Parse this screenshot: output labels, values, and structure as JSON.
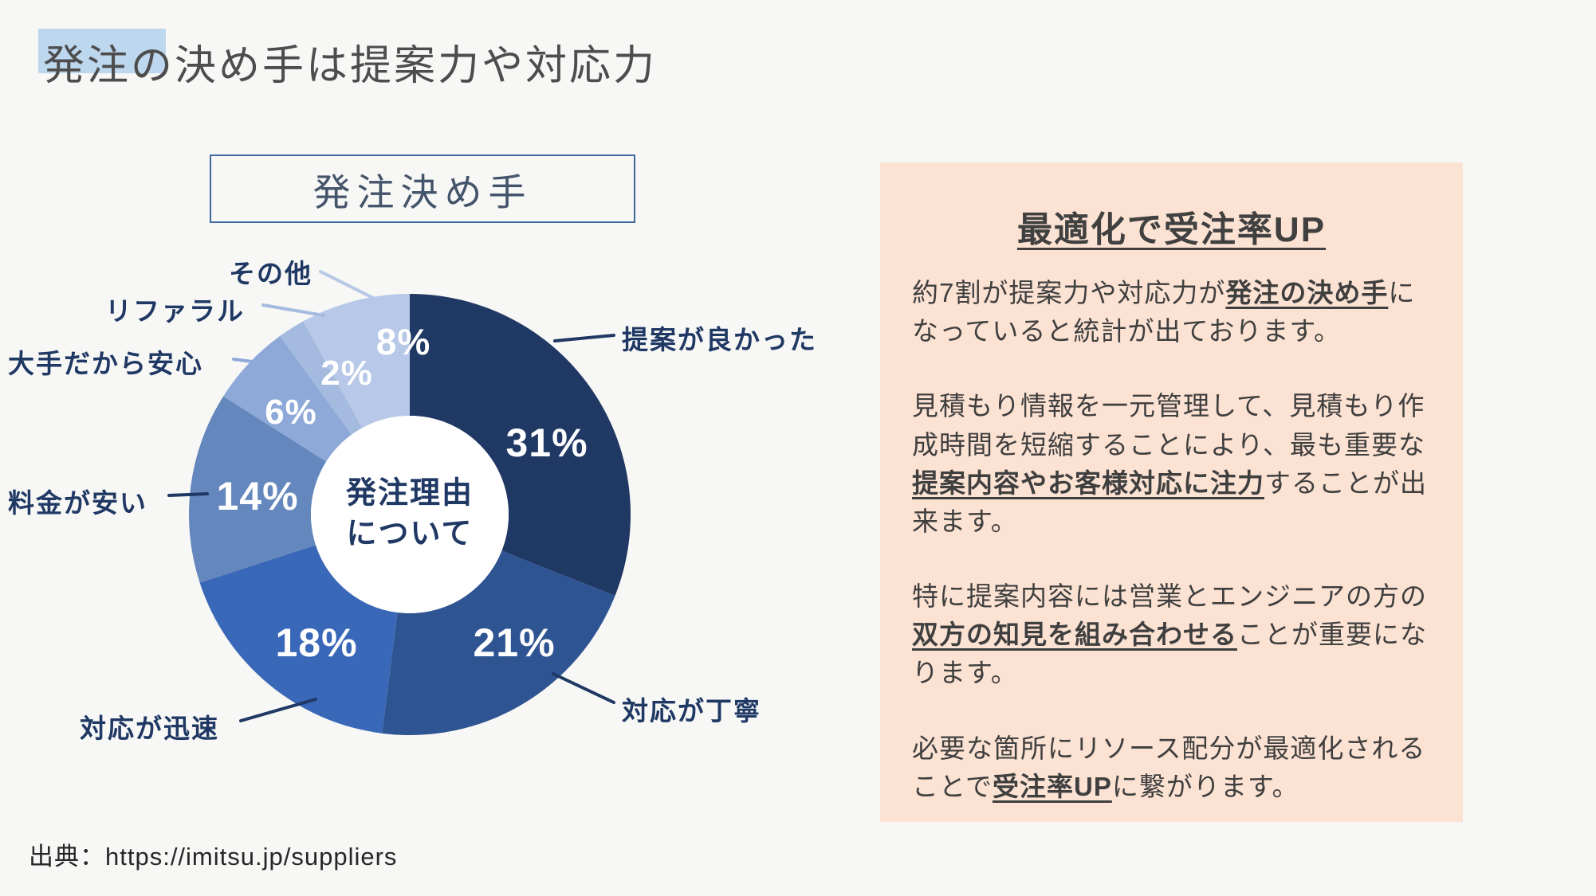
{
  "page": {
    "title": "発注の決め手は提案力や対応力",
    "source": "出典：https://imitsu.jp/suppliers"
  },
  "colors": {
    "slide_background": "#f7f7f5",
    "title_highlight": "#bdd7ee",
    "panel_background": "#fbe2d3",
    "label_navy": "#1f3864",
    "chart_box_border": "#3f689c",
    "body_text": "#3f3f3f"
  },
  "chart_data": {
    "type": "pie",
    "variant": "donut",
    "title": "発注決め手",
    "center_label": "発注理由について",
    "center_label_lines": [
      "発注理由",
      "について"
    ],
    "unit": "%",
    "start_angle_deg": 0,
    "direction": "clockwise",
    "slices": [
      {
        "label": "提案が良かった",
        "value": 31,
        "color": "#203864"
      },
      {
        "label": "対応が丁寧",
        "value": 21,
        "color": "#2e5492"
      },
      {
        "label": "対応が迅速",
        "value": 18,
        "color": "#3a68b8"
      },
      {
        "label": "料金が安い",
        "value": 14,
        "color": "#6487bd"
      },
      {
        "label": "大手だから安心",
        "value": 6,
        "color": "#8ea9d8"
      },
      {
        "label": "リファラル",
        "value": 2,
        "color": "#a4badf"
      },
      {
        "label": "その他",
        "value": 8,
        "color": "#b7c8e8"
      }
    ]
  },
  "panel": {
    "title": "最適化で受注率UP",
    "paragraphs": [
      {
        "runs": [
          {
            "text": "約7割が提案力や対応力が"
          },
          {
            "text": "発注の決め手",
            "strong": true
          },
          {
            "text": "になっていると統計が出ております。"
          }
        ]
      },
      {
        "runs": [
          {
            "text": "見積もり情報を一元管理して、見積もり作成時間を短縮することにより、最も重要な"
          },
          {
            "text": "提案内容やお客様対応に注力",
            "strong": true
          },
          {
            "text": "することが出来ます。"
          }
        ]
      },
      {
        "runs": [
          {
            "text": "特に提案内容には営業とエンジニアの方の"
          },
          {
            "text": "双方の知見を組み合わせる",
            "strong": true
          },
          {
            "text": "ことが重要になります。"
          }
        ]
      },
      {
        "runs": [
          {
            "text": "必要な箇所にリソース配分が最適化されることで"
          },
          {
            "text": "受注率UP",
            "strong": true
          },
          {
            "text": "に繋がります。"
          }
        ]
      }
    ]
  }
}
